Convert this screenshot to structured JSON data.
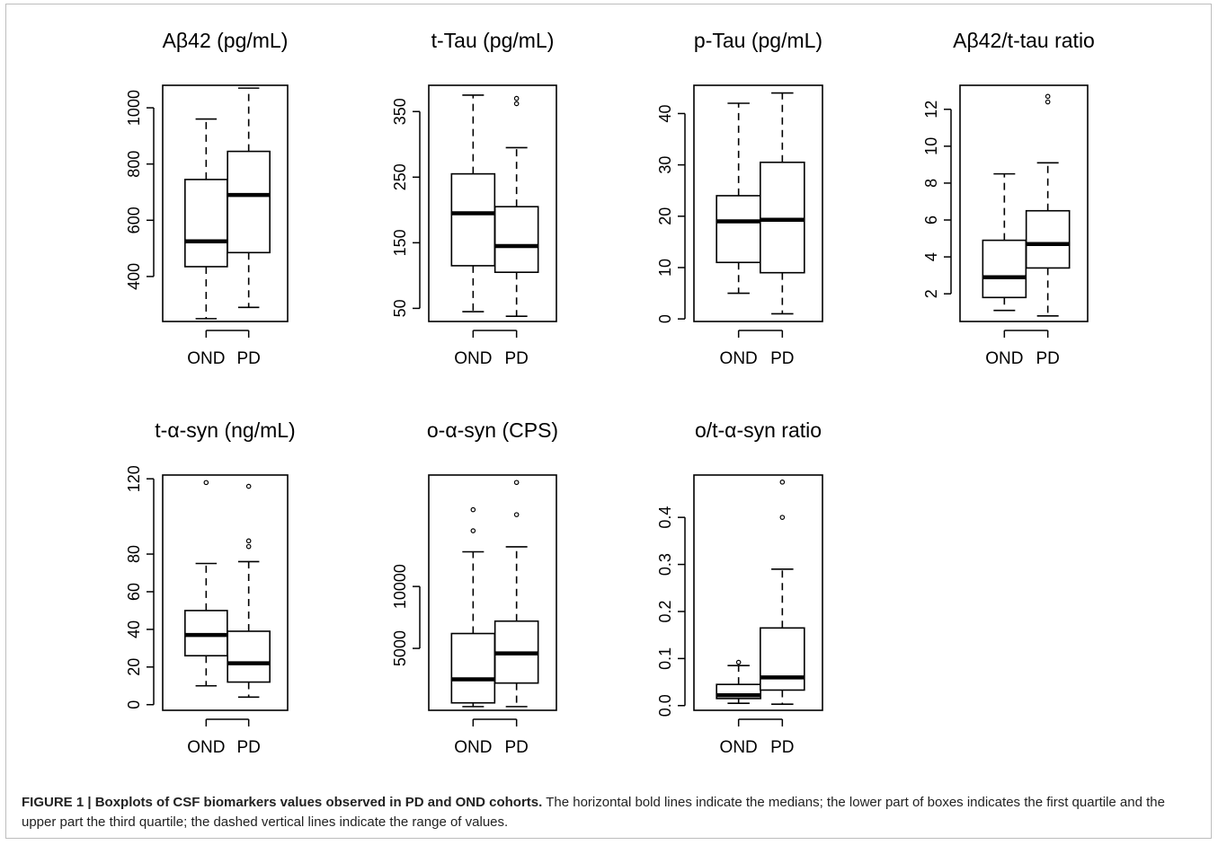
{
  "chart_data": [
    {
      "type": "boxplot",
      "title": "Aβ42 (pg/mL)",
      "ylim": [
        240,
        1080
      ],
      "yticks": [
        400,
        600,
        800,
        1000
      ],
      "categories": [
        "OND",
        "PD"
      ],
      "boxes": [
        {
          "name": "OND",
          "whisker_low": 250,
          "q1": 435,
          "median": 525,
          "q3": 745,
          "whisker_high": 960,
          "outliers": []
        },
        {
          "name": "PD",
          "whisker_low": 290,
          "q1": 485,
          "median": 690,
          "q3": 845,
          "whisker_high": 1070,
          "outliers": []
        }
      ]
    },
    {
      "type": "boxplot",
      "title": "t-Tau (pg/mL)",
      "ylim": [
        30,
        390
      ],
      "yticks": [
        50,
        150,
        250,
        350
      ],
      "categories": [
        "OND",
        "PD"
      ],
      "boxes": [
        {
          "name": "OND",
          "whisker_low": 45,
          "q1": 115,
          "median": 195,
          "q3": 255,
          "whisker_high": 375,
          "outliers": []
        },
        {
          "name": "PD",
          "whisker_low": 38,
          "q1": 105,
          "median": 145,
          "q3": 205,
          "whisker_high": 295,
          "outliers": [
            362,
            370
          ]
        }
      ]
    },
    {
      "type": "boxplot",
      "title": "p-Tau (pg/mL)",
      "ylim": [
        -0.5,
        45.5
      ],
      "yticks": [
        0,
        10,
        20,
        30,
        40
      ],
      "categories": [
        "OND",
        "PD"
      ],
      "boxes": [
        {
          "name": "OND",
          "whisker_low": 5,
          "q1": 11,
          "median": 19,
          "q3": 24,
          "whisker_high": 42,
          "outliers": []
        },
        {
          "name": "PD",
          "whisker_low": 1,
          "q1": 9,
          "median": 19.3,
          "q3": 30.5,
          "whisker_high": 44,
          "outliers": []
        }
      ]
    },
    {
      "type": "boxplot",
      "title": "Aβ42/t-tau ratio",
      "ylim": [
        0.5,
        13.3
      ],
      "yticks": [
        2,
        4,
        6,
        8,
        10,
        12
      ],
      "categories": [
        "OND",
        "PD"
      ],
      "boxes": [
        {
          "name": "OND",
          "whisker_low": 1.1,
          "q1": 1.8,
          "median": 2.9,
          "q3": 4.9,
          "whisker_high": 8.5,
          "outliers": []
        },
        {
          "name": "PD",
          "whisker_low": 0.8,
          "q1": 3.4,
          "median": 4.7,
          "q3": 6.5,
          "whisker_high": 9.1,
          "outliers": [
            12.4,
            12.7
          ]
        }
      ]
    },
    {
      "type": "boxplot",
      "title": "t-α-syn (ng/mL)",
      "ylim": [
        -3,
        122
      ],
      "yticks": [
        0,
        20,
        40,
        60,
        80,
        120
      ],
      "categories": [
        "OND",
        "PD"
      ],
      "boxes": [
        {
          "name": "OND",
          "whisker_low": 10,
          "q1": 26,
          "median": 37,
          "q3": 50,
          "whisker_high": 75,
          "outliers": [
            118
          ]
        },
        {
          "name": "PD",
          "whisker_low": 4,
          "q1": 12,
          "median": 22,
          "q3": 39,
          "whisker_high": 76,
          "outliers": [
            84,
            87,
            116
          ]
        }
      ]
    },
    {
      "type": "boxplot",
      "title": "o-α-syn (CPS)",
      "ylim": [
        0,
        19000
      ],
      "yticks": [
        5000,
        10000
      ],
      "categories": [
        "OND",
        "PD"
      ],
      "boxes": [
        {
          "name": "OND",
          "whisker_low": 300,
          "q1": 600,
          "median": 2500,
          "q3": 6200,
          "whisker_high": 12800,
          "outliers": [
            14500,
            16200
          ]
        },
        {
          "name": "PD",
          "whisker_low": 300,
          "q1": 2200,
          "median": 4600,
          "q3": 7200,
          "whisker_high": 13200,
          "outliers": [
            15800,
            18400
          ]
        }
      ]
    },
    {
      "type": "boxplot",
      "title": "o/t-α-syn ratio",
      "ylim": [
        -0.01,
        0.49
      ],
      "yticks": [
        0.0,
        0.1,
        0.2,
        0.3,
        0.4
      ],
      "ytick_labels": [
        "0.0",
        "0.1",
        "0.2",
        "0.3",
        "0.4"
      ],
      "categories": [
        "OND",
        "PD"
      ],
      "boxes": [
        {
          "name": "OND",
          "whisker_low": 0.005,
          "q1": 0.015,
          "median": 0.022,
          "q3": 0.045,
          "whisker_high": 0.085,
          "outliers": [
            0.092
          ]
        },
        {
          "name": "PD",
          "whisker_low": 0.003,
          "q1": 0.033,
          "median": 0.06,
          "q3": 0.165,
          "whisker_high": 0.29,
          "outliers": [
            0.4,
            0.475
          ]
        }
      ]
    }
  ],
  "caption": {
    "label": "FIGURE 1 | Boxplots of CSF biomarkers values observed in PD and OND cohorts.",
    "text": " The horizontal bold lines indicate the medians; the lower part of boxes indicates the first quartile and the upper part the third quartile; the dashed vertical lines indicate the range of values."
  }
}
